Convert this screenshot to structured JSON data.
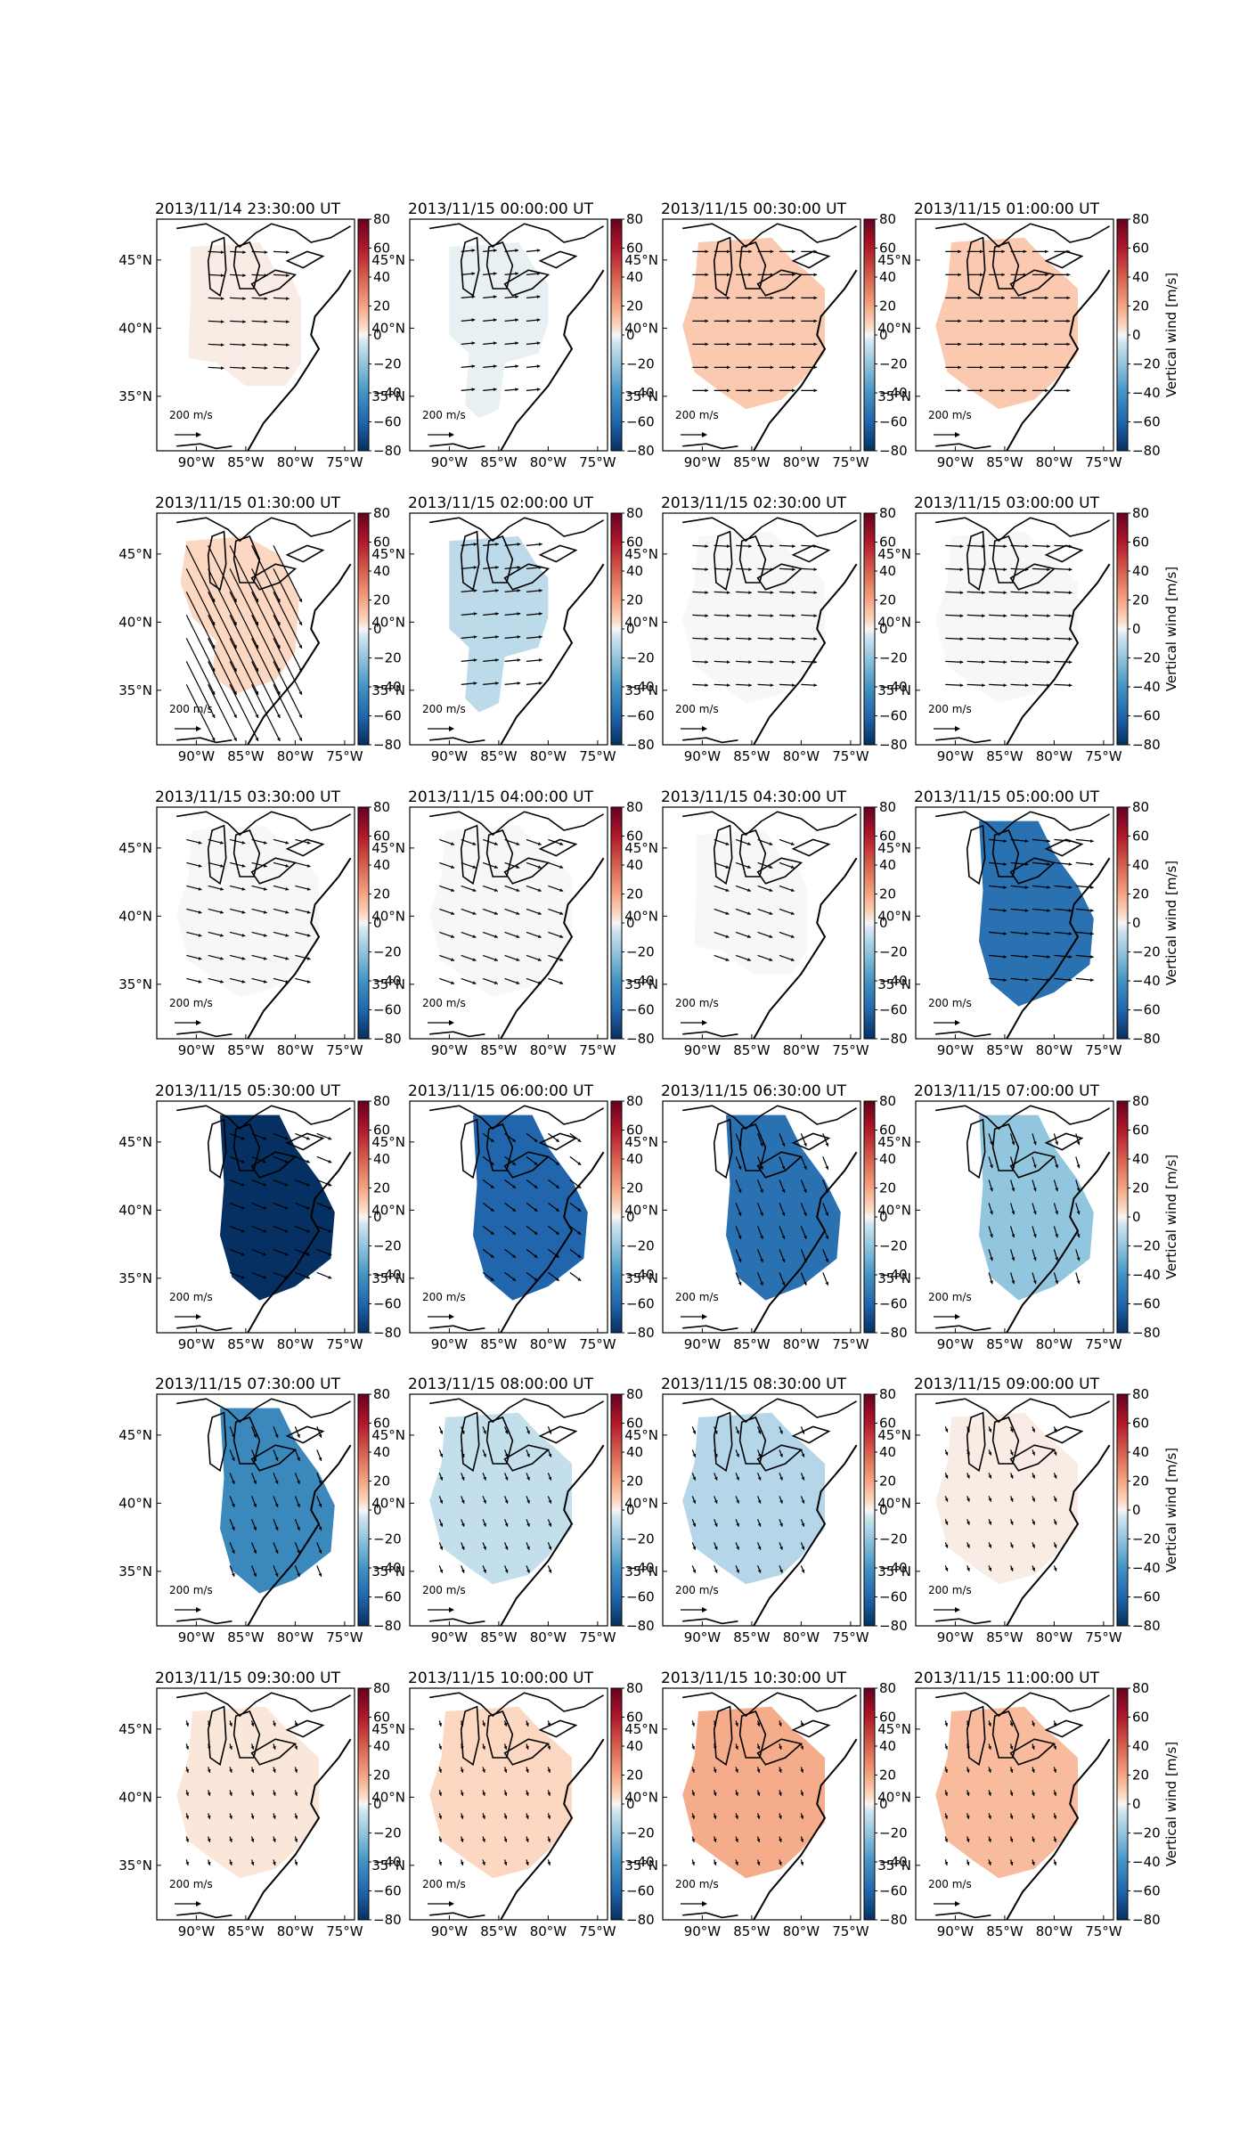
{
  "figure": {
    "colorbar_label": "Vertical wind [m/s]",
    "colorbar_ticks": [
      "80",
      "60",
      "40",
      "20",
      "0",
      "−20",
      "−40",
      "−60",
      "−80"
    ],
    "lon_ticks": [
      "90°W",
      "85°W",
      "80°W",
      "75°W"
    ],
    "lat_ticks": [
      "45°N",
      "40°N",
      "35°N"
    ],
    "scale_label": "200 m/s"
  },
  "colors": {
    "strong_positive": "#67001f",
    "moderate_positive": "#d6604d",
    "weak_positive": "#fddbc7",
    "zero": "#f7f7f7",
    "weak_negative": "#d1e5f0",
    "moderate_negative": "#4393c3",
    "strong_negative": "#053061",
    "coastline": "#000000"
  },
  "chart_data": {
    "type": "heatmap",
    "description_of_fill": "mean vertical wind in m/s, colorbar RdBu_r from -80 to 80",
    "xlim": [
      "94°W",
      "74°W"
    ],
    "ylim": [
      "31°N",
      "48°N"
    ],
    "zlim": [
      -80,
      80
    ],
    "panels": [
      {
        "title": "2013/11/14 23:30:00 UT",
        "wind_ms": 2,
        "region": "north",
        "arrow": {
          "u": 1.0,
          "v": -0.05,
          "len": 0.08
        }
      },
      {
        "title": "2013/11/15 00:00:00 UT",
        "wind_ms": -2,
        "region": "south",
        "arrow": {
          "u": 1.0,
          "v": 0.1,
          "len": 0.07
        }
      },
      {
        "title": "2013/11/15 00:30:00 UT",
        "wind_ms": 10,
        "region": "wide",
        "arrow": {
          "u": 1.0,
          "v": 0.0,
          "len": 0.08
        }
      },
      {
        "title": "2013/11/15 01:00:00 UT",
        "wind_ms": 10,
        "region": "wide",
        "arrow": {
          "u": 1.0,
          "v": 0.0,
          "len": 0.08
        }
      },
      {
        "title": "2013/11/15 01:30:00 UT",
        "wind_ms": 6,
        "region": "west",
        "arrow": {
          "u": 0.5,
          "v": -1.0,
          "len": 0.32
        }
      },
      {
        "title": "2013/11/15 02:00:00 UT",
        "wind_ms": -10,
        "region": "south",
        "arrow": {
          "u": 1.0,
          "v": 0.1,
          "len": 0.08
        }
      },
      {
        "title": "2013/11/15 02:30:00 UT",
        "wind_ms": 0,
        "region": "wide",
        "arrow": {
          "u": 1.0,
          "v": -0.05,
          "len": 0.08
        }
      },
      {
        "title": "2013/11/15 03:00:00 UT",
        "wind_ms": 0,
        "region": "wide",
        "arrow": {
          "u": 1.0,
          "v": -0.05,
          "len": 0.09
        }
      },
      {
        "title": "2013/11/15 03:30:00 UT",
        "wind_ms": 0,
        "region": "wide",
        "arrow": {
          "u": 1.0,
          "v": -0.25,
          "len": 0.08
        }
      },
      {
        "title": "2013/11/15 04:00:00 UT",
        "wind_ms": 0,
        "region": "wide",
        "arrow": {
          "u": 1.0,
          "v": -0.35,
          "len": 0.08
        }
      },
      {
        "title": "2013/11/15 04:30:00 UT",
        "wind_ms": 0,
        "region": "north",
        "arrow": {
          "u": 1.0,
          "v": -0.35,
          "len": 0.08
        }
      },
      {
        "title": "2013/11/15 05:00:00 UT",
        "wind_ms": -55,
        "region": "east",
        "arrow": {
          "u": 1.0,
          "v": -0.1,
          "len": 0.09
        }
      },
      {
        "title": "2013/11/15 05:30:00 UT",
        "wind_ms": -80,
        "region": "east",
        "arrow": {
          "u": 1.0,
          "v": -0.4,
          "len": 0.08
        }
      },
      {
        "title": "2013/11/15 06:00:00 UT",
        "wind_ms": -60,
        "region": "east",
        "arrow": {
          "u": 0.8,
          "v": -0.6,
          "len": 0.07
        }
      },
      {
        "title": "2013/11/15 06:30:00 UT",
        "wind_ms": -55,
        "region": "east",
        "arrow": {
          "u": 0.4,
          "v": -1.0,
          "len": 0.07
        }
      },
      {
        "title": "2013/11/15 07:00:00 UT",
        "wind_ms": -20,
        "region": "east",
        "arrow": {
          "u": 0.3,
          "v": -1.0,
          "len": 0.06
        }
      },
      {
        "title": "2013/11/15 07:30:00 UT",
        "wind_ms": -45,
        "region": "east",
        "arrow": {
          "u": 0.4,
          "v": -1.0,
          "len": 0.06
        }
      },
      {
        "title": "2013/11/15 08:00:00 UT",
        "wind_ms": -8,
        "region": "wide",
        "arrow": {
          "u": 0.4,
          "v": -1.0,
          "len": 0.04
        }
      },
      {
        "title": "2013/11/15 08:30:00 UT",
        "wind_ms": -12,
        "region": "wide",
        "arrow": {
          "u": 0.4,
          "v": -1.0,
          "len": 0.04
        }
      },
      {
        "title": "2013/11/15 09:00:00 UT",
        "wind_ms": 2,
        "region": "wide",
        "arrow": {
          "u": 0.4,
          "v": -1.0,
          "len": 0.03
        }
      },
      {
        "title": "2013/11/15 09:30:00 UT",
        "wind_ms": 3,
        "region": "wide",
        "arrow": {
          "u": 0.3,
          "v": -1.0,
          "len": 0.03
        }
      },
      {
        "title": "2013/11/15 10:00:00 UT",
        "wind_ms": 6,
        "region": "wide",
        "arrow": {
          "u": 0.3,
          "v": -1.0,
          "len": 0.03
        }
      },
      {
        "title": "2013/11/15 10:30:00 UT",
        "wind_ms": 18,
        "region": "wide",
        "arrow": {
          "u": 0.3,
          "v": -1.0,
          "len": 0.03
        }
      },
      {
        "title": "2013/11/15 11:00:00 UT",
        "wind_ms": 14,
        "region": "wide",
        "arrow": {
          "u": 0.3,
          "v": -1.0,
          "len": 0.03
        }
      }
    ]
  }
}
